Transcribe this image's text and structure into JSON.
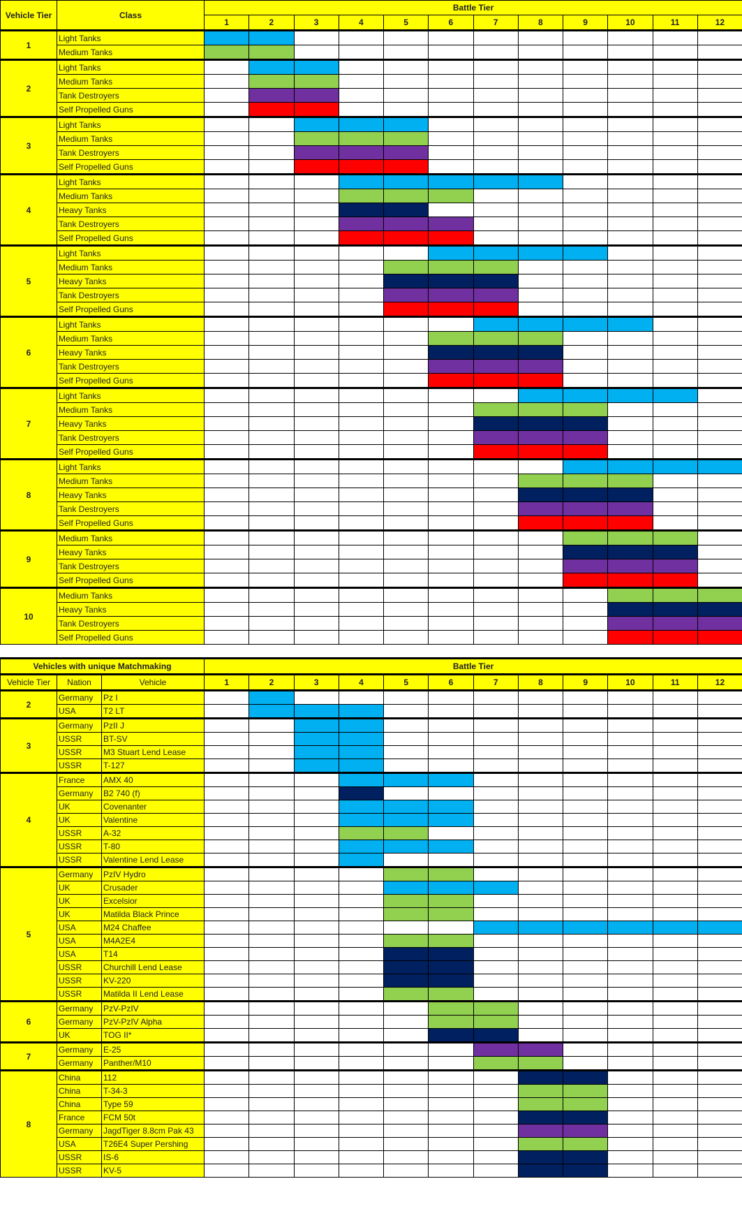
{
  "fills": {
    "light": "#00b0f0",
    "medium": "#92d050",
    "heavy": "#002060",
    "td": "#7030a0",
    "spg": "#ff0000"
  },
  "header_color": "#ffff00",
  "top_table": {
    "headers": {
      "vehicle_tier": "Vehicle Tier",
      "class": "Class",
      "battle_tier": "Battle Tier"
    },
    "battle_tiers": [
      "1",
      "2",
      "3",
      "4",
      "5",
      "6",
      "7",
      "8",
      "9",
      "10",
      "11",
      "12"
    ],
    "groups": [
      {
        "tier": "1",
        "rows": [
          {
            "class": "Light Tanks",
            "fill": "light",
            "range": [
              1,
              2
            ]
          },
          {
            "class": "Medium Tanks",
            "fill": "medium",
            "range": [
              1,
              2
            ]
          }
        ]
      },
      {
        "tier": "2",
        "rows": [
          {
            "class": "Light Tanks",
            "fill": "light",
            "range": [
              2,
              3
            ]
          },
          {
            "class": "Medium Tanks",
            "fill": "medium",
            "range": [
              2,
              3
            ]
          },
          {
            "class": "Tank Destroyers",
            "fill": "td",
            "range": [
              2,
              3
            ]
          },
          {
            "class": "Self Propelled Guns",
            "fill": "spg",
            "range": [
              2,
              3
            ]
          }
        ]
      },
      {
        "tier": "3",
        "rows": [
          {
            "class": "Light Tanks",
            "fill": "light",
            "range": [
              3,
              5
            ]
          },
          {
            "class": "Medium Tanks",
            "fill": "medium",
            "range": [
              3,
              5
            ]
          },
          {
            "class": "Tank Destroyers",
            "fill": "td",
            "range": [
              3,
              5
            ]
          },
          {
            "class": "Self Propelled Guns",
            "fill": "spg",
            "range": [
              3,
              5
            ]
          }
        ]
      },
      {
        "tier": "4",
        "rows": [
          {
            "class": "Light Tanks",
            "fill": "light",
            "range": [
              4,
              8
            ]
          },
          {
            "class": "Medium Tanks",
            "fill": "medium",
            "range": [
              4,
              6
            ]
          },
          {
            "class": "Heavy Tanks",
            "fill": "heavy",
            "range": [
              4,
              5
            ]
          },
          {
            "class": "Tank Destroyers",
            "fill": "td",
            "range": [
              4,
              6
            ]
          },
          {
            "class": "Self Propelled Guns",
            "fill": "spg",
            "range": [
              4,
              6
            ]
          }
        ]
      },
      {
        "tier": "5",
        "rows": [
          {
            "class": "Light Tanks",
            "fill": "light",
            "range": [
              6,
              9
            ]
          },
          {
            "class": "Medium Tanks",
            "fill": "medium",
            "range": [
              5,
              7
            ]
          },
          {
            "class": "Heavy Tanks",
            "fill": "heavy",
            "range": [
              5,
              7
            ]
          },
          {
            "class": "Tank Destroyers",
            "fill": "td",
            "range": [
              5,
              7
            ]
          },
          {
            "class": "Self Propelled Guns",
            "fill": "spg",
            "range": [
              5,
              7
            ]
          }
        ]
      },
      {
        "tier": "6",
        "rows": [
          {
            "class": "Light Tanks",
            "fill": "light",
            "range": [
              7,
              10
            ]
          },
          {
            "class": "Medium Tanks",
            "fill": "medium",
            "range": [
              6,
              8
            ]
          },
          {
            "class": "Heavy Tanks",
            "fill": "heavy",
            "range": [
              6,
              8
            ]
          },
          {
            "class": "Tank Destroyers",
            "fill": "td",
            "range": [
              6,
              8
            ]
          },
          {
            "class": "Self Propelled Guns",
            "fill": "spg",
            "range": [
              6,
              8
            ]
          }
        ]
      },
      {
        "tier": "7",
        "rows": [
          {
            "class": "Light Tanks",
            "fill": "light",
            "range": [
              8,
              11
            ]
          },
          {
            "class": "Medium Tanks",
            "fill": "medium",
            "range": [
              7,
              9
            ]
          },
          {
            "class": "Heavy Tanks",
            "fill": "heavy",
            "range": [
              7,
              9
            ]
          },
          {
            "class": "Tank Destroyers",
            "fill": "td",
            "range": [
              7,
              9
            ]
          },
          {
            "class": "Self Propelled Guns",
            "fill": "spg",
            "range": [
              7,
              9
            ]
          }
        ]
      },
      {
        "tier": "8",
        "rows": [
          {
            "class": "Light Tanks",
            "fill": "light",
            "range": [
              9,
              12
            ]
          },
          {
            "class": "Medium Tanks",
            "fill": "medium",
            "range": [
              8,
              10
            ]
          },
          {
            "class": "Heavy Tanks",
            "fill": "heavy",
            "range": [
              8,
              10
            ]
          },
          {
            "class": "Tank Destroyers",
            "fill": "td",
            "range": [
              8,
              10
            ]
          },
          {
            "class": "Self Propelled Guns",
            "fill": "spg",
            "range": [
              8,
              10
            ]
          }
        ]
      },
      {
        "tier": "9",
        "rows": [
          {
            "class": "Medium Tanks",
            "fill": "medium",
            "range": [
              9,
              11
            ]
          },
          {
            "class": "Heavy Tanks",
            "fill": "heavy",
            "range": [
              9,
              11
            ]
          },
          {
            "class": "Tank Destroyers",
            "fill": "td",
            "range": [
              9,
              11
            ]
          },
          {
            "class": "Self Propelled Guns",
            "fill": "spg",
            "range": [
              9,
              11
            ]
          }
        ]
      },
      {
        "tier": "10",
        "rows": [
          {
            "class": "Medium Tanks",
            "fill": "medium",
            "range": [
              10,
              12
            ]
          },
          {
            "class": "Heavy Tanks",
            "fill": "heavy",
            "range": [
              10,
              12
            ]
          },
          {
            "class": "Tank Destroyers",
            "fill": "td",
            "range": [
              10,
              12
            ]
          },
          {
            "class": "Self Propelled Guns",
            "fill": "spg",
            "range": [
              10,
              12
            ]
          }
        ]
      }
    ]
  },
  "bottom_table": {
    "title": "Vehicles with unique Matchmaking",
    "headers": {
      "vehicle_tier": "Vehicle Tier",
      "nation": "Nation",
      "vehicle": "Vehicle",
      "battle_tier": "Battle Tier"
    },
    "battle_tiers": [
      "1",
      "2",
      "3",
      "4",
      "5",
      "6",
      "7",
      "8",
      "9",
      "10",
      "11",
      "12"
    ],
    "groups": [
      {
        "tier": "2",
        "rows": [
          {
            "nation": "Germany",
            "vehicle": "Pz I",
            "fill": "light",
            "range": [
              2,
              2
            ]
          },
          {
            "nation": "USA",
            "vehicle": "T2 LT",
            "fill": "light",
            "range": [
              2,
              4
            ]
          }
        ]
      },
      {
        "tier": "3",
        "rows": [
          {
            "nation": "Germany",
            "vehicle": "PzII J",
            "fill": "light",
            "range": [
              3,
              4
            ]
          },
          {
            "nation": "USSR",
            "vehicle": "BT-SV",
            "fill": "light",
            "range": [
              3,
              4
            ]
          },
          {
            "nation": "USSR",
            "vehicle": "M3 Stuart Lend Lease",
            "fill": "light",
            "range": [
              3,
              4
            ]
          },
          {
            "nation": "USSR",
            "vehicle": "T-127",
            "fill": "light",
            "range": [
              3,
              4
            ]
          }
        ]
      },
      {
        "tier": "4",
        "rows": [
          {
            "nation": "France",
            "vehicle": "AMX 40",
            "fill": "light",
            "range": [
              4,
              6
            ]
          },
          {
            "nation": "Germany",
            "vehicle": "B2 740 (f)",
            "fill": "heavy",
            "range": [
              4,
              4
            ]
          },
          {
            "nation": "UK",
            "vehicle": "Covenanter",
            "fill": "light",
            "range": [
              4,
              6
            ]
          },
          {
            "nation": "UK",
            "vehicle": "Valentine",
            "fill": "light",
            "range": [
              4,
              6
            ]
          },
          {
            "nation": "USSR",
            "vehicle": "A-32",
            "fill": "medium",
            "range": [
              4,
              5
            ]
          },
          {
            "nation": "USSR",
            "vehicle": "T-80",
            "fill": "light",
            "range": [
              4,
              6
            ]
          },
          {
            "nation": "USSR",
            "vehicle": "Valentine Lend Lease",
            "fill": "light",
            "range": [
              4,
              4
            ]
          }
        ]
      },
      {
        "tier": "5",
        "rows": [
          {
            "nation": "Germany",
            "vehicle": "PzIV Hydro",
            "fill": "medium",
            "range": [
              5,
              6
            ]
          },
          {
            "nation": "UK",
            "vehicle": "Crusader",
            "fill": "light",
            "range": [
              5,
              7
            ]
          },
          {
            "nation": "UK",
            "vehicle": "Excelsior",
            "fill": "medium",
            "range": [
              5,
              6
            ]
          },
          {
            "nation": "UK",
            "vehicle": "Matilda Black Prince",
            "fill": "medium",
            "range": [
              5,
              6
            ]
          },
          {
            "nation": "USA",
            "vehicle": "M24 Chaffee",
            "fill": "light",
            "range": [
              7,
              12
            ]
          },
          {
            "nation": "USA",
            "vehicle": "M4A2E4",
            "fill": "medium",
            "range": [
              5,
              6
            ]
          },
          {
            "nation": "USA",
            "vehicle": "T14",
            "fill": "heavy",
            "range": [
              5,
              6
            ]
          },
          {
            "nation": "USSR",
            "vehicle": "Churchill Lend Lease",
            "fill": "heavy",
            "range": [
              5,
              6
            ]
          },
          {
            "nation": "USSR",
            "vehicle": "KV-220",
            "fill": "heavy",
            "range": [
              5,
              6
            ]
          },
          {
            "nation": "USSR",
            "vehicle": "Matilda II Lend Lease",
            "fill": "medium",
            "range": [
              5,
              6
            ]
          }
        ]
      },
      {
        "tier": "6",
        "rows": [
          {
            "nation": "Germany",
            "vehicle": "PzV-PzIV",
            "fill": "medium",
            "range": [
              6,
              7
            ]
          },
          {
            "nation": "Germany",
            "vehicle": "PzV-PzIV Alpha",
            "fill": "medium",
            "range": [
              6,
              7
            ]
          },
          {
            "nation": "UK",
            "vehicle": "TOG II*",
            "fill": "heavy",
            "range": [
              6,
              7
            ]
          }
        ]
      },
      {
        "tier": "7",
        "rows": [
          {
            "nation": "Germany",
            "vehicle": "E-25",
            "fill": "td",
            "range": [
              7,
              8
            ]
          },
          {
            "nation": "Germany",
            "vehicle": "Panther/M10",
            "fill": "medium",
            "range": [
              7,
              8
            ]
          }
        ]
      },
      {
        "tier": "8",
        "rows": [
          {
            "nation": "China",
            "vehicle": "112",
            "fill": "heavy",
            "range": [
              8,
              9
            ]
          },
          {
            "nation": "China",
            "vehicle": "T-34-3",
            "fill": "medium",
            "range": [
              8,
              9
            ]
          },
          {
            "nation": "China",
            "vehicle": "Type 59",
            "fill": "medium",
            "range": [
              8,
              9
            ]
          },
          {
            "nation": "France",
            "vehicle": "FCM 50t",
            "fill": "heavy",
            "range": [
              8,
              9
            ]
          },
          {
            "nation": "Germany",
            "vehicle": "JagdTiger 8.8cm Pak 43",
            "fill": "td",
            "range": [
              8,
              9
            ]
          },
          {
            "nation": "USA",
            "vehicle": "T26E4 Super Pershing",
            "fill": "medium",
            "range": [
              8,
              9
            ]
          },
          {
            "nation": "USSR",
            "vehicle": "IS-6",
            "fill": "heavy",
            "range": [
              8,
              9
            ]
          },
          {
            "nation": "USSR",
            "vehicle": "KV-5",
            "fill": "heavy",
            "range": [
              8,
              9
            ]
          }
        ]
      }
    ]
  }
}
